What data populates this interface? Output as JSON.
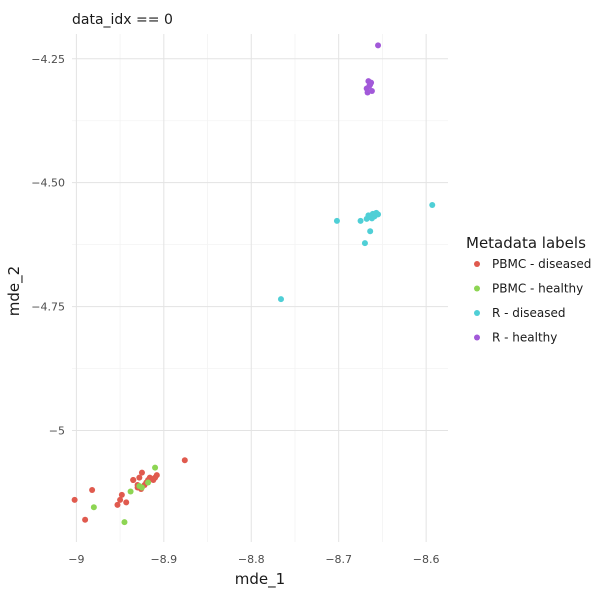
{
  "chart_data": {
    "type": "scatter",
    "title": "data_idx == 0",
    "xlabel": "mde_1",
    "ylabel": "mde_2",
    "xlim": [
      -9.005,
      -8.575
    ],
    "ylim": [
      -5.225,
      -4.2
    ],
    "x_ticks": [
      -9,
      -8.9,
      -8.8,
      -8.7,
      -8.6
    ],
    "x_tick_labels": [
      "−9",
      "−8.9",
      "−8.8",
      "−8.7",
      "−8.6"
    ],
    "y_ticks": [
      -5,
      -4.75,
      -4.5,
      -4.25
    ],
    "y_tick_labels": [
      "−5",
      "−4.75",
      "−4.50",
      "−4.25"
    ],
    "grid": true,
    "legend": {
      "title": "Metadata labels",
      "placement": "right"
    },
    "series": [
      {
        "name": "PBMC - diseased",
        "color": "#e05a4e",
        "points": [
          [
            -9.002,
            -5.14
          ],
          [
            -8.982,
            -5.12
          ],
          [
            -8.99,
            -5.18
          ],
          [
            -8.953,
            -5.15
          ],
          [
            -8.948,
            -5.13
          ],
          [
            -8.943,
            -5.145
          ],
          [
            -8.935,
            -5.1
          ],
          [
            -8.93,
            -5.11
          ],
          [
            -8.928,
            -5.095
          ],
          [
            -8.925,
            -5.085
          ],
          [
            -8.92,
            -5.105
          ],
          [
            -8.916,
            -5.095
          ],
          [
            -8.912,
            -5.1
          ],
          [
            -8.908,
            -5.09
          ],
          [
            -8.93,
            -5.115
          ],
          [
            -8.922,
            -5.11
          ],
          [
            -8.876,
            -5.06
          ],
          [
            -8.95,
            -5.14
          ],
          [
            -8.935,
            -5.1
          ],
          [
            -8.918,
            -5.1
          ],
          [
            -8.926,
            -5.118
          ],
          [
            -8.91,
            -5.095
          ]
        ]
      },
      {
        "name": "PBMC - healthy",
        "color": "#8dd553",
        "points": [
          [
            -8.98,
            -5.155
          ],
          [
            -8.945,
            -5.185
          ],
          [
            -8.91,
            -5.075
          ],
          [
            -8.938,
            -5.123
          ],
          [
            -8.928,
            -5.112
          ],
          [
            -8.918,
            -5.105
          ],
          [
            -8.925,
            -5.115
          ]
        ]
      },
      {
        "name": "R - diseased",
        "color": "#4fcfd6",
        "points": [
          [
            -8.593,
            -4.545
          ],
          [
            -8.702,
            -4.577
          ],
          [
            -8.675,
            -4.577
          ],
          [
            -8.67,
            -4.622
          ],
          [
            -8.664,
            -4.598
          ],
          [
            -8.766,
            -4.735
          ],
          [
            -8.668,
            -4.573
          ],
          [
            -8.664,
            -4.568
          ],
          [
            -8.661,
            -4.563
          ],
          [
            -8.659,
            -4.568
          ],
          [
            -8.657,
            -4.561
          ],
          [
            -8.655,
            -4.564
          ],
          [
            -8.662,
            -4.572
          ],
          [
            -8.666,
            -4.566
          ]
        ]
      },
      {
        "name": "R - healthy",
        "color": "#a259d9",
        "points": [
          [
            -8.655,
            -4.223
          ],
          [
            -8.666,
            -4.295
          ],
          [
            -8.664,
            -4.302
          ],
          [
            -8.668,
            -4.31
          ],
          [
            -8.662,
            -4.315
          ],
          [
            -8.667,
            -4.318
          ],
          [
            -8.665,
            -4.305
          ],
          [
            -8.663,
            -4.298
          ]
        ]
      }
    ]
  }
}
